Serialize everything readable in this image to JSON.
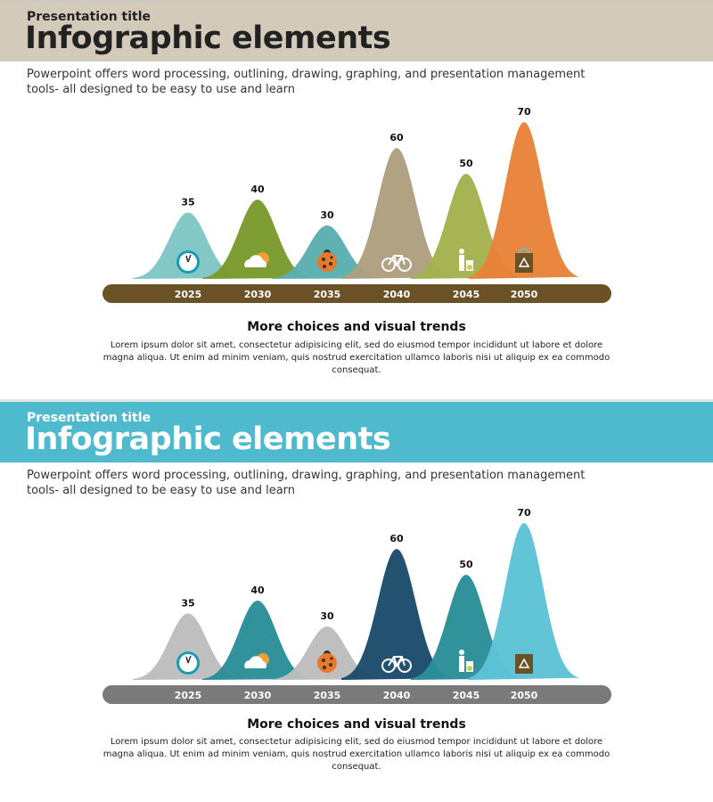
{
  "slides": [
    {
      "kicker": "Presentation title",
      "title": "Infographic elements",
      "description": "Powerpoint offers word processing, outlining, drawing, graphing, and presentation management tools- all designed to be easy to use and learn",
      "subtitle": "More choices and visual trends",
      "body": "Lorem ipsum dolor sit amet, consectetur adipisicing elit, sed do eiusmod tempor incididunt ut labore et dolore magna aliqua. Ut enim ad minim veniam, quis nostrud exercitation ullamco laboris nisi ut aliquip ex ea commodo consequat.",
      "header_color": "#d3cab9",
      "axis_color": "#6b5226",
      "peak_colors": [
        "#7fc6c4",
        "#7a9a2e",
        "#5ab0ae",
        "#ae9f80",
        "#a3b24e",
        "#e8823a"
      ]
    },
    {
      "kicker": "Presentation title",
      "title": "Infographic elements",
      "description": "Powerpoint offers word processing, outlining, drawing, graphing, and presentation management tools- all designed to be easy to use and learn",
      "subtitle": "More choices and visual trends",
      "body": "Lorem ipsum dolor sit amet, consectetur adipisicing elit, sed do eiusmod tempor incididunt ut labore et dolore magna aliqua. Ut enim ad minim veniam, quis nostrud exercitation ullamco laboris nisi ut aliquip ex ea commodo consequat.",
      "header_color": "#4fbacd",
      "axis_color": "#7a7a7a",
      "peak_colors": [
        "#bdbdbd",
        "#2a8e98",
        "#bdbdbd",
        "#1b4c6a",
        "#2a8e98",
        "#5cc3d6"
      ]
    }
  ],
  "chart_data": [
    {
      "type": "area",
      "categories": [
        "2025",
        "2030",
        "2035",
        "2040",
        "2045",
        "2050"
      ],
      "values": [
        35,
        40,
        30,
        60,
        50,
        70
      ],
      "icons": [
        "clock-icon",
        "cloud-sun-icon",
        "ladybug-icon",
        "bicycle-icon",
        "recycle-person-icon",
        "recycle-bag-icon"
      ]
    },
    {
      "type": "area",
      "categories": [
        "2025",
        "2030",
        "2035",
        "2040",
        "2045",
        "2050"
      ],
      "values": [
        35,
        40,
        30,
        60,
        50,
        70
      ],
      "icons": [
        "clock-icon",
        "cloud-sun-icon",
        "ladybug-icon",
        "bicycle-icon",
        "recycle-person-icon",
        "recycle-bag-icon"
      ]
    }
  ]
}
